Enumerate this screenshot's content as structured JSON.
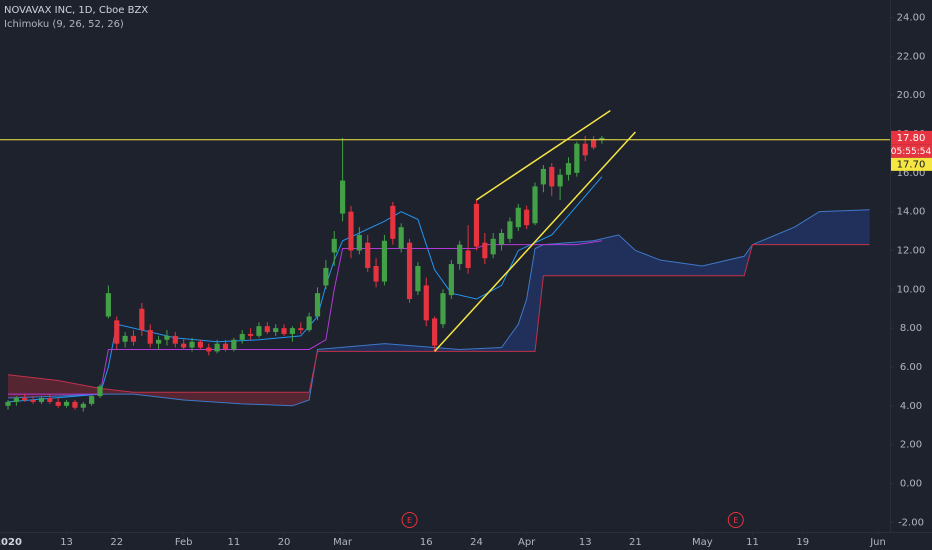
{
  "chart_data": {
    "type": "candlestick",
    "title": "NOVAVAX INC, 1D, Cboe BZX",
    "indicator": "Ichimoku (9, 26, 52, 26)",
    "up_color": "#43a047",
    "down_color": "#e53340",
    "candles": {
      "x": [
        "2020-01-02",
        "2020-01-03",
        "2020-01-06",
        "2020-01-07",
        "2020-01-08",
        "2020-01-09",
        "2020-01-10",
        "2020-01-13",
        "2020-01-14",
        "2020-01-15",
        "2020-01-16",
        "2020-01-17",
        "2020-01-21",
        "2020-01-22",
        "2020-01-23",
        "2020-01-24",
        "2020-01-27",
        "2020-01-28",
        "2020-01-29",
        "2020-01-30",
        "2020-01-31",
        "2020-02-03",
        "2020-02-04",
        "2020-02-05",
        "2020-02-06",
        "2020-02-07",
        "2020-02-10",
        "2020-02-11",
        "2020-02-12",
        "2020-02-13",
        "2020-02-14",
        "2020-02-18",
        "2020-02-19",
        "2020-02-20",
        "2020-02-21",
        "2020-02-24",
        "2020-02-25",
        "2020-02-26",
        "2020-02-27",
        "2020-02-28",
        "2020-03-02",
        "2020-03-03",
        "2020-03-04",
        "2020-03-05",
        "2020-03-06",
        "2020-03-09",
        "2020-03-10",
        "2020-03-11",
        "2020-03-12",
        "2020-03-13",
        "2020-03-16",
        "2020-03-17",
        "2020-03-18",
        "2020-03-19",
        "2020-03-20",
        "2020-03-23",
        "2020-03-24",
        "2020-03-25",
        "2020-03-26",
        "2020-03-27",
        "2020-03-30",
        "2020-03-31",
        "2020-04-01",
        "2020-04-02",
        "2020-04-03",
        "2020-04-06",
        "2020-04-07",
        "2020-04-08",
        "2020-04-09",
        "2020-04-13",
        "2020-04-14",
        "2020-04-15"
      ],
      "open": [
        4.0,
        4.2,
        4.4,
        4.3,
        4.2,
        4.4,
        4.2,
        4.0,
        4.2,
        3.9,
        4.1,
        4.5,
        8.6,
        8.4,
        7.3,
        7.6,
        9.0,
        7.9,
        7.2,
        7.4,
        7.6,
        7.2,
        7.0,
        7.3,
        7.0,
        6.8,
        7.2,
        6.9,
        7.4,
        7.7,
        7.6,
        8.1,
        7.8,
        8.0,
        7.7,
        8.0,
        7.9,
        8.6,
        10.2,
        11.9,
        13.9,
        14.0,
        12.0,
        12.4,
        11.2,
        10.4,
        14.3,
        12.1,
        12.4,
        9.9,
        10.2,
        8.5,
        8.2,
        9.7,
        11.3,
        12.0,
        14.4,
        12.4,
        11.8,
        12.3,
        12.6,
        13.2,
        14.1,
        13.4,
        15.4,
        16.3,
        15.3,
        15.9,
        16.0,
        17.5,
        17.7,
        17.7
      ],
      "high": [
        4.3,
        4.5,
        4.6,
        4.5,
        4.5,
        4.6,
        4.4,
        4.3,
        4.3,
        4.2,
        4.6,
        5.1,
        10.2,
        8.6,
        7.8,
        7.9,
        9.3,
        8.2,
        7.6,
        7.9,
        7.8,
        7.5,
        7.5,
        7.4,
        7.2,
        7.4,
        7.4,
        7.5,
        7.9,
        8.0,
        8.3,
        8.3,
        8.2,
        8.2,
        8.1,
        8.3,
        8.8,
        10.1,
        11.5,
        13.0,
        17.8,
        14.3,
        13.2,
        12.8,
        11.6,
        12.8,
        14.5,
        13.4,
        12.6,
        11.4,
        10.6,
        8.6,
        10.0,
        11.5,
        12.5,
        13.3,
        14.6,
        12.9,
        12.9,
        13.1,
        13.7,
        14.4,
        14.3,
        15.5,
        16.4,
        16.5,
        16.2,
        16.8,
        17.6,
        17.9,
        17.9,
        17.9
      ],
      "low": [
        3.8,
        4.0,
        4.2,
        4.1,
        4.1,
        4.1,
        3.9,
        3.9,
        3.8,
        3.7,
        4.0,
        4.4,
        8.5,
        6.9,
        7.0,
        7.1,
        7.6,
        7.0,
        6.9,
        7.1,
        7.0,
        6.9,
        6.8,
        6.9,
        6.6,
        6.7,
        6.8,
        6.8,
        7.2,
        7.4,
        7.5,
        7.7,
        7.6,
        7.6,
        7.3,
        7.7,
        7.8,
        8.4,
        10.0,
        11.2,
        13.5,
        11.6,
        11.8,
        10.9,
        10.1,
        10.2,
        12.3,
        11.9,
        9.3,
        9.7,
        8.1,
        6.8,
        8.0,
        9.5,
        11.0,
        10.8,
        12.0,
        11.3,
        11.6,
        12.0,
        12.4,
        13.0,
        13.1,
        13.3,
        15.0,
        14.8,
        14.6,
        15.6,
        15.8,
        16.6,
        17.2,
        17.5
      ],
      "close": [
        4.2,
        4.4,
        4.3,
        4.2,
        4.4,
        4.2,
        4.0,
        4.2,
        3.9,
        4.1,
        4.5,
        5.0,
        9.8,
        7.2,
        7.6,
        7.3,
        7.9,
        7.2,
        7.4,
        7.6,
        7.2,
        7.0,
        7.3,
        7.0,
        6.8,
        7.2,
        6.9,
        7.4,
        7.7,
        7.6,
        8.1,
        7.8,
        8.0,
        7.7,
        8.0,
        7.9,
        8.6,
        9.8,
        11.1,
        12.6,
        15.6,
        12.0,
        12.8,
        11.1,
        10.4,
        12.5,
        12.6,
        13.2,
        9.5,
        11.2,
        8.4,
        7.1,
        9.8,
        11.3,
        12.3,
        11.1,
        12.2,
        11.6,
        12.6,
        12.9,
        13.5,
        14.2,
        13.3,
        15.3,
        16.2,
        15.3,
        15.9,
        16.5,
        17.5,
        16.9,
        17.3,
        17.8
      ]
    },
    "cloud": {
      "up_fill": "rgba(41,98,255,0.22)",
      "down_fill": "rgba(229,51,64,0.28)",
      "x": [
        "2020-01-02",
        "2020-01-10",
        "2020-01-17",
        "2020-01-24",
        "2020-02-03",
        "2020-02-12",
        "2020-02-21",
        "2020-02-25",
        "2020-02-26",
        "2020-03-09",
        "2020-03-20",
        "2020-03-27",
        "2020-03-31",
        "2020-04-01",
        "2020-04-02",
        "2020-04-03",
        "2020-04-14",
        "2020-04-17",
        "2020-04-21",
        "2020-04-24",
        "2020-05-01",
        "2020-05-08",
        "2020-05-11",
        "2020-05-18",
        "2020-05-21",
        "2020-05-29"
      ],
      "span_a": {
        "color": "#3f78c8",
        "values": [
          4.4,
          4.5,
          4.6,
          4.6,
          4.3,
          4.1,
          4.0,
          4.3,
          6.9,
          7.2,
          6.9,
          7.0,
          8.2,
          9.5,
          12.1,
          12.3,
          12.5,
          12.8,
          12.0,
          11.5,
          11.2,
          11.7,
          12.3,
          13.2,
          14.0,
          14.1
        ]
      },
      "span_b": {
        "color": "#c2304a",
        "values": [
          5.6,
          5.3,
          4.9,
          4.7,
          4.7,
          4.7,
          4.7,
          4.7,
          6.8,
          6.8,
          6.8,
          6.8,
          6.8,
          6.8,
          6.8,
          10.7,
          10.7,
          10.7,
          10.7,
          10.7,
          10.7,
          10.7,
          12.3,
          12.3,
          12.3,
          12.3
        ]
      }
    },
    "lines": [
      {
        "color": "#2196f3",
        "x": [
          "2020-01-02",
          "2020-01-17",
          "2020-01-21",
          "2020-01-22",
          "2020-01-31",
          "2020-02-07",
          "2020-02-14",
          "2020-02-24",
          "2020-02-26",
          "2020-02-27",
          "2020-02-28",
          "2020-03-02",
          "2020-03-09",
          "2020-03-11",
          "2020-03-13",
          "2020-03-17",
          "2020-03-19",
          "2020-03-24",
          "2020-03-27",
          "2020-03-31",
          "2020-04-06",
          "2020-04-09",
          "2020-04-15"
        ],
        "values": [
          4.2,
          4.6,
          6.0,
          8.2,
          7.5,
          7.3,
          7.4,
          7.6,
          8.6,
          10.2,
          11.5,
          12.5,
          13.5,
          14.0,
          13.6,
          11.0,
          9.8,
          9.5,
          10.2,
          12.0,
          12.8,
          14.3,
          15.8
        ]
      },
      {
        "color": "#b23ad8",
        "x": [
          "2020-01-02",
          "2020-01-17",
          "2020-01-21",
          "2020-02-25",
          "2020-02-27",
          "2020-02-28",
          "2020-03-02",
          "2020-03-24",
          "2020-03-25",
          "2020-04-09",
          "2020-04-15"
        ],
        "values": [
          4.6,
          4.6,
          6.9,
          6.9,
          7.4,
          10.0,
          12.1,
          12.1,
          12.3,
          12.3,
          12.5
        ]
      }
    ],
    "drawings": [
      {
        "color": "#f5e642",
        "x": [
          "2020-03-17",
          "2020-04-21"
        ],
        "values": [
          6.8,
          18.1
        ]
      },
      {
        "color": "#f5e642",
        "x": [
          "2020-03-24",
          "2020-04-16"
        ],
        "values": [
          14.6,
          19.2
        ]
      }
    ],
    "alert_line": {
      "value": 17.7,
      "label": "17.70",
      "color": "#f5e642"
    },
    "last_price": {
      "value": 17.8,
      "label": "17.80",
      "countdown": "05:55:54",
      "color": "#e53340"
    },
    "events": [
      {
        "x": "2020-03-12",
        "label": "E",
        "color": "#e53340"
      },
      {
        "x": "2020-05-07",
        "label": "E",
        "color": "#e53340"
      }
    ],
    "xlim": [
      "2020-01-02",
      "2020-06-01"
    ],
    "xticks": [
      {
        "value": "2020-01-02",
        "label": "2020"
      },
      {
        "value": "2020-01-13",
        "label": "13"
      },
      {
        "value": "2020-01-22",
        "label": "22"
      },
      {
        "value": "2020-02-03",
        "label": "Feb"
      },
      {
        "value": "2020-02-11",
        "label": "11"
      },
      {
        "value": "2020-02-20",
        "label": "20"
      },
      {
        "value": "2020-03-02",
        "label": "Mar"
      },
      {
        "value": "2020-03-16",
        "label": "16"
      },
      {
        "value": "2020-03-24",
        "label": "24"
      },
      {
        "value": "2020-04-01",
        "label": "Apr"
      },
      {
        "value": "2020-04-13",
        "label": "13"
      },
      {
        "value": "2020-04-21",
        "label": "21"
      },
      {
        "value": "2020-05-01",
        "label": "May"
      },
      {
        "value": "2020-05-11",
        "label": "11"
      },
      {
        "value": "2020-05-19",
        "label": "19"
      },
      {
        "value": "2020-06-01",
        "label": "Jun"
      }
    ],
    "ylim": [
      -2.5,
      24.9
    ],
    "yticks": [
      {
        "value": 24,
        "label": "24.00"
      },
      {
        "value": 22,
        "label": "22.00"
      },
      {
        "value": 20,
        "label": "20.00"
      },
      {
        "value": 18,
        "label": "18.00"
      },
      {
        "value": 16,
        "label": "16.00"
      },
      {
        "value": 14,
        "label": "14.00"
      },
      {
        "value": 12,
        "label": "12.00"
      },
      {
        "value": 10,
        "label": "10.00"
      },
      {
        "value": 8,
        "label": "8.00"
      },
      {
        "value": 6,
        "label": "6.00"
      },
      {
        "value": 4,
        "label": "4.00"
      },
      {
        "value": 2,
        "label": "2.00"
      },
      {
        "value": 0,
        "label": "0.00"
      },
      {
        "value": -2,
        "label": "-2.00"
      }
    ]
  }
}
